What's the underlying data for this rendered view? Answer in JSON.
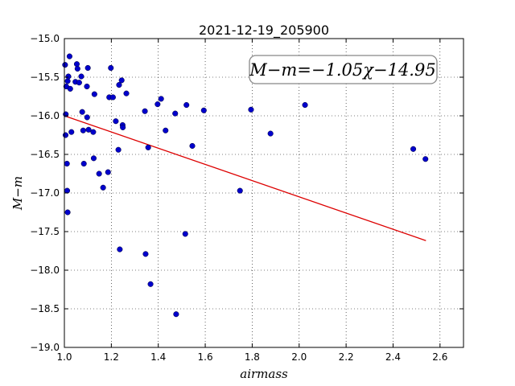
{
  "chart_data": {
    "type": "scatter",
    "title": "2021-12-19_205900",
    "xlabel": "airmass",
    "ylabel": "M−m",
    "annotation": "M−m=−1.05χ−14.95",
    "xlim": [
      1.0,
      2.7
    ],
    "ylim": [
      -19.0,
      -15.0
    ],
    "grid": true,
    "x_ticks": [
      "1.0",
      "1.2",
      "1.4",
      "1.6",
      "1.8",
      "2.0",
      "2.2",
      "2.4",
      "2.6"
    ],
    "y_ticks": [
      "−15.0",
      "−15.5",
      "−16.0",
      "−16.5",
      "−17.0",
      "−17.5",
      "−18.0",
      "−18.5",
      "−19.0"
    ],
    "marker_color": "#0000cc",
    "fit_color": "#dd0000",
    "fit": {
      "slope": -1.05,
      "intercept": -14.95,
      "x_range": [
        1.0,
        2.54
      ]
    },
    "points": [
      [
        1.003,
        -15.34
      ],
      [
        1.006,
        -15.98
      ],
      [
        1.005,
        -16.25
      ],
      [
        1.008,
        -15.62
      ],
      [
        1.011,
        -16.62
      ],
      [
        1.012,
        -16.97
      ],
      [
        1.014,
        -17.25
      ],
      [
        1.014,
        -15.55
      ],
      [
        1.017,
        -15.49
      ],
      [
        1.022,
        -15.23
      ],
      [
        1.025,
        -15.65
      ],
      [
        1.03,
        -16.21
      ],
      [
        1.047,
        -15.56
      ],
      [
        1.053,
        -15.33
      ],
      [
        1.056,
        -15.39
      ],
      [
        1.063,
        -15.57
      ],
      [
        1.072,
        -15.49
      ],
      [
        1.076,
        -15.95
      ],
      [
        1.08,
        -16.19
      ],
      [
        1.083,
        -16.62
      ],
      [
        1.096,
        -15.62
      ],
      [
        1.097,
        -16.02
      ],
      [
        1.1,
        -15.38
      ],
      [
        1.103,
        -16.18
      ],
      [
        1.123,
        -16.21
      ],
      [
        1.125,
        -16.55
      ],
      [
        1.128,
        -15.72
      ],
      [
        1.148,
        -16.75
      ],
      [
        1.165,
        -16.93
      ],
      [
        1.186,
        -16.73
      ],
      [
        1.191,
        -15.76
      ],
      [
        1.198,
        -15.38
      ],
      [
        1.207,
        -15.76
      ],
      [
        1.219,
        -16.07
      ],
      [
        1.23,
        -16.44
      ],
      [
        1.233,
        -15.6
      ],
      [
        1.236,
        -17.73
      ],
      [
        1.244,
        -15.54
      ],
      [
        1.248,
        -16.12
      ],
      [
        1.249,
        -16.15
      ],
      [
        1.264,
        -15.71
      ],
      [
        1.343,
        -15.94
      ],
      [
        1.346,
        -17.79
      ],
      [
        1.357,
        -16.41
      ],
      [
        1.367,
        -18.18
      ],
      [
        1.397,
        -15.85
      ],
      [
        1.412,
        -15.78
      ],
      [
        1.431,
        -16.19
      ],
      [
        1.472,
        -15.97
      ],
      [
        1.476,
        -18.57
      ],
      [
        1.515,
        -17.53
      ],
      [
        1.52,
        -15.86
      ],
      [
        1.545,
        -16.39
      ],
      [
        1.594,
        -15.93
      ],
      [
        1.748,
        -16.97
      ],
      [
        1.795,
        -15.92
      ],
      [
        1.878,
        -16.23
      ],
      [
        2.025,
        -15.86
      ],
      [
        2.486,
        -16.43
      ],
      [
        2.538,
        -16.56
      ]
    ]
  }
}
